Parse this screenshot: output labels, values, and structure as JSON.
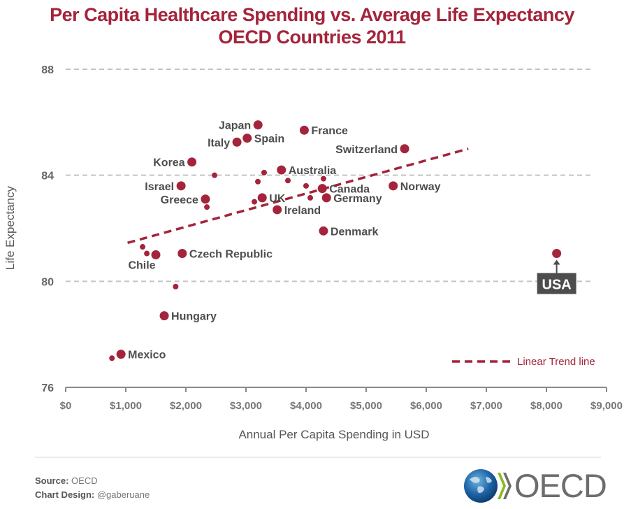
{
  "header": {
    "title_line1": "Per Capita Healthcare Spending vs. Average Life Expectancy",
    "title_line2": "OECD Countries 2011"
  },
  "colors": {
    "accent": "#a4243b",
    "text": "#4d4d4d",
    "axis": "#8a8a8a",
    "grid": "#c4c4c4",
    "callout": "#4d4d4d"
  },
  "chart_data": {
    "type": "scatter",
    "title": "Per Capita Healthcare Spending vs. Average Life Expectancy OECD Countries 2011",
    "xlabel": "Annual Per Capita Spending in USD",
    "ylabel": "Life Expectancy",
    "xlim": [
      0,
      9000
    ],
    "ylim": [
      76,
      88
    ],
    "x_ticks": [
      0,
      1000,
      2000,
      3000,
      4000,
      5000,
      6000,
      7000,
      8000,
      9000
    ],
    "x_tick_labels": [
      "$0",
      "$1,000",
      "$2,000",
      "$3,000",
      "$4,000",
      "$5,000",
      "$6,000",
      "$7,000",
      "$8,000",
      "$9,000"
    ],
    "y_ticks": [
      76,
      80,
      84,
      88
    ],
    "y_tick_labels": [
      "76",
      "80",
      "84",
      "88"
    ],
    "grid": "horizontal dashed",
    "points": [
      {
        "label": "Japan",
        "x": 3200,
        "y": 85.9,
        "labeled": true,
        "label_side": "left"
      },
      {
        "label": "France",
        "x": 3970,
        "y": 85.7,
        "labeled": true,
        "label_side": "right"
      },
      {
        "label": "Spain",
        "x": 3020,
        "y": 85.4,
        "labeled": true,
        "label_side": "right"
      },
      {
        "label": "Italy",
        "x": 2850,
        "y": 85.25,
        "labeled": true,
        "label_side": "left"
      },
      {
        "label": "Switzerland",
        "x": 5640,
        "y": 85.0,
        "labeled": true,
        "label_side": "left"
      },
      {
        "label": "Korea",
        "x": 2100,
        "y": 84.5,
        "labeled": true,
        "label_side": "left"
      },
      {
        "label": "Australia",
        "x": 3590,
        "y": 84.2,
        "labeled": true,
        "label_side": "right"
      },
      {
        "label": "Israel",
        "x": 1920,
        "y": 83.6,
        "labeled": true,
        "label_side": "left"
      },
      {
        "label": "Canada",
        "x": 4270,
        "y": 83.5,
        "labeled": true,
        "label_side": "right"
      },
      {
        "label": "Norway",
        "x": 5450,
        "y": 83.6,
        "labeled": true,
        "label_side": "right"
      },
      {
        "label": "Greece",
        "x": 2325,
        "y": 83.1,
        "labeled": true,
        "label_side": "left"
      },
      {
        "label": "UK",
        "x": 3270,
        "y": 83.15,
        "labeled": true,
        "label_side": "right"
      },
      {
        "label": "Germany",
        "x": 4340,
        "y": 83.15,
        "labeled": true,
        "label_side": "right"
      },
      {
        "label": "Ireland",
        "x": 3520,
        "y": 82.7,
        "labeled": true,
        "label_side": "right"
      },
      {
        "label": "Denmark",
        "x": 4290,
        "y": 81.9,
        "labeled": true,
        "label_side": "right"
      },
      {
        "label": "Chile",
        "x": 1500,
        "y": 81.0,
        "labeled": true,
        "label_side": "below"
      },
      {
        "label": "Czech Republic",
        "x": 1940,
        "y": 81.05,
        "labeled": true,
        "label_side": "right"
      },
      {
        "label": "Hungary",
        "x": 1640,
        "y": 78.7,
        "labeled": true,
        "label_side": "right"
      },
      {
        "label": "Mexico",
        "x": 920,
        "y": 77.25,
        "labeled": true,
        "label_side": "right"
      },
      {
        "label": "USA",
        "x": 8170,
        "y": 81.05,
        "labeled": true,
        "label_side": "callout"
      },
      {
        "label": "",
        "x": 2477,
        "y": 84.0,
        "labeled": false
      },
      {
        "label": "",
        "x": 3302,
        "y": 84.1,
        "labeled": false
      },
      {
        "label": "",
        "x": 3198,
        "y": 83.76,
        "labeled": false
      },
      {
        "label": "",
        "x": 3698,
        "y": 83.8,
        "labeled": false
      },
      {
        "label": "",
        "x": 4000,
        "y": 83.6,
        "labeled": false
      },
      {
        "label": "",
        "x": 4290,
        "y": 83.87,
        "labeled": false
      },
      {
        "label": "",
        "x": 4070,
        "y": 83.15,
        "labeled": false
      },
      {
        "label": "",
        "x": 3140,
        "y": 83.0,
        "labeled": false
      },
      {
        "label": "",
        "x": 2350,
        "y": 82.8,
        "labeled": false
      },
      {
        "label": "",
        "x": 1280,
        "y": 81.3,
        "labeled": false
      },
      {
        "label": "",
        "x": 1350,
        "y": 81.05,
        "labeled": false
      },
      {
        "label": "",
        "x": 1830,
        "y": 79.8,
        "labeled": false
      },
      {
        "label": "",
        "x": 770,
        "y": 77.1,
        "labeled": false
      }
    ],
    "trend_line": {
      "name": "Linear Trend line",
      "x": [
        1030,
        6700
      ],
      "y": [
        81.45,
        85.0
      ]
    },
    "legend": {
      "entries": [
        "Linear Trend line"
      ],
      "placement": "bottom-right"
    }
  },
  "footer": {
    "source_label": "Source:",
    "source_value": "OECD",
    "design_label": "Chart Design:",
    "design_value": "@gaberuane",
    "logo_text": "OECD"
  }
}
